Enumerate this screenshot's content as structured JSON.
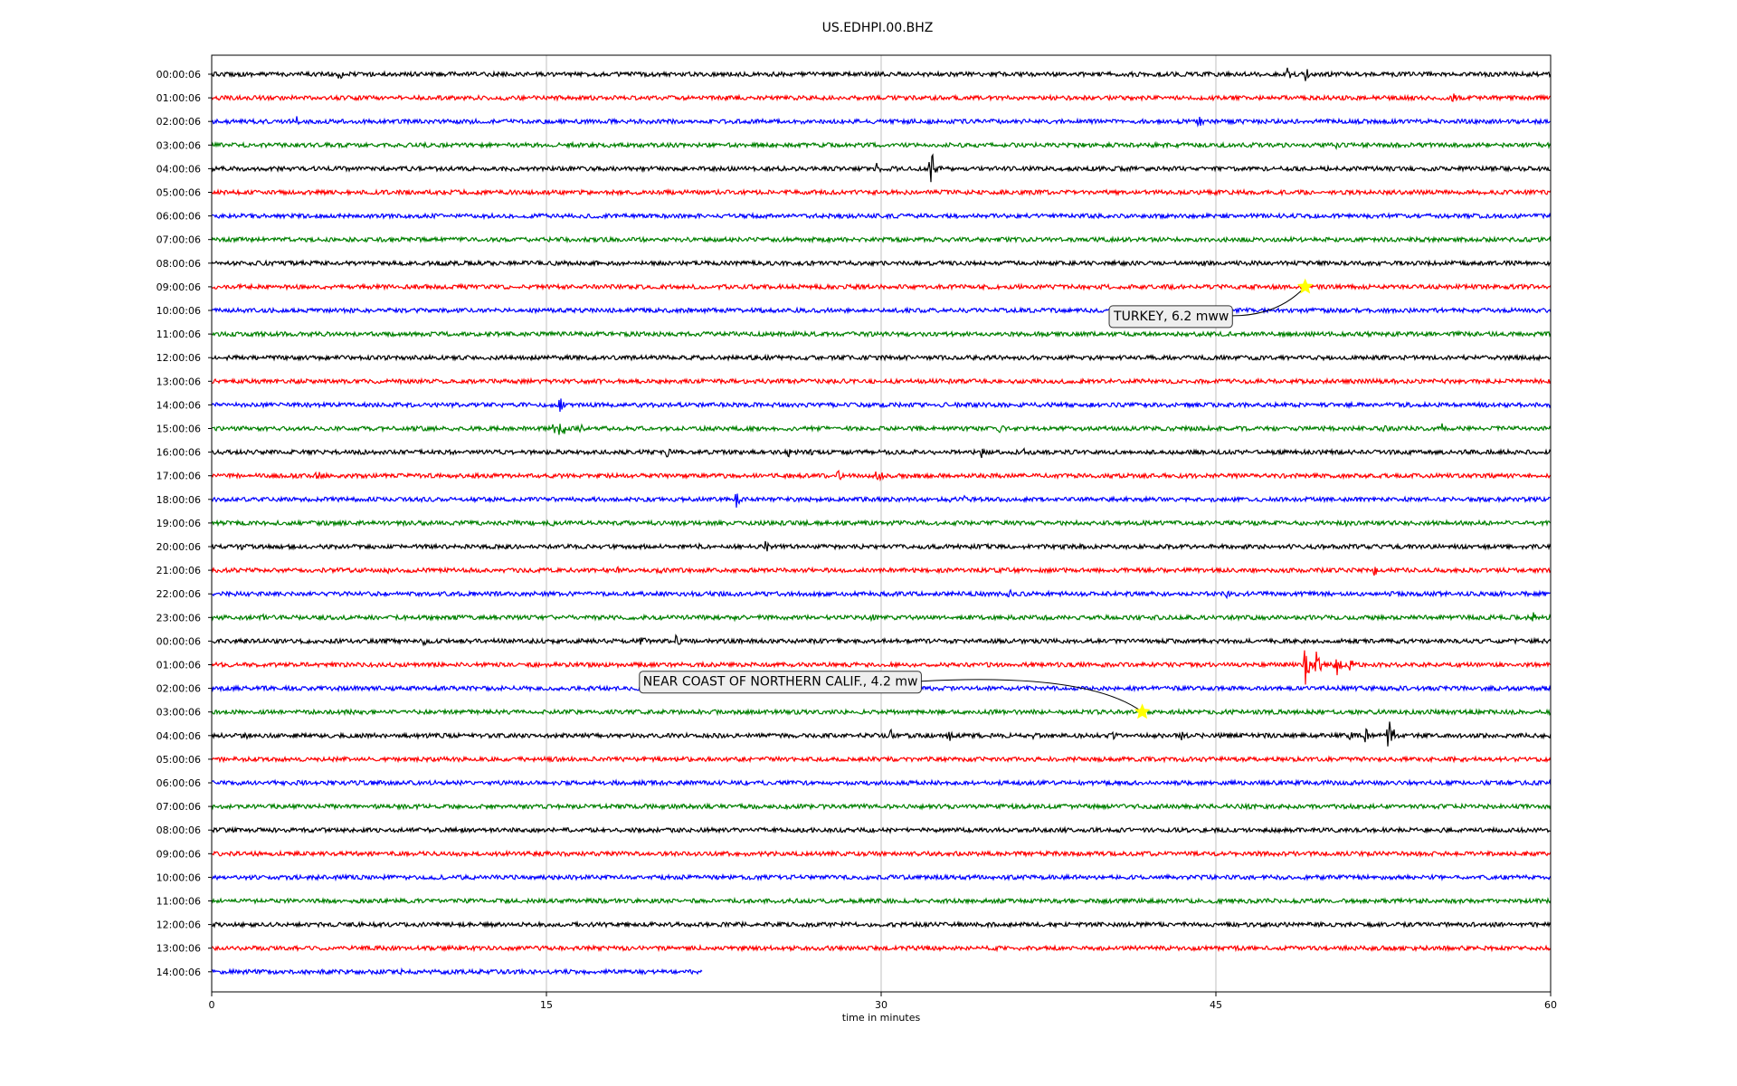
{
  "chart_data": {
    "type": "line",
    "title": "US.EDHPI.00.BHZ",
    "xlabel": "time in minutes",
    "ylabel": "",
    "xlim": [
      0,
      60
    ],
    "x_ticks": [
      0,
      15,
      30,
      45,
      60
    ],
    "x_tick_labels": [
      "0",
      "15",
      "30",
      "45",
      "60"
    ],
    "grid": "vertical at x ticks",
    "row_colors": [
      "#000000",
      "#ff0000",
      "#0000ff",
      "#008000"
    ],
    "rows": [
      {
        "label": "00:00:06",
        "end_min": 60,
        "events": [
          [
            5.7,
            0.6
          ],
          [
            35.3,
            0.5
          ],
          [
            48.2,
            0.6
          ],
          [
            49.0,
            0.7
          ]
        ]
      },
      {
        "label": "01:00:06",
        "end_min": 60,
        "events": [
          [
            13.1,
            0.2
          ],
          [
            43.8,
            0.4
          ],
          [
            55.6,
            0.6
          ]
        ]
      },
      {
        "label": "02:00:06",
        "end_min": 60,
        "events": [
          [
            3.8,
            0.6
          ],
          [
            11.6,
            0.2
          ],
          [
            44.2,
            0.7
          ]
        ]
      },
      {
        "label": "03:00:06",
        "end_min": 60,
        "events": [
          [
            50.4,
            0.3
          ]
        ]
      },
      {
        "label": "04:00:06",
        "end_min": 60,
        "events": [
          [
            29.8,
            0.5
          ],
          [
            32.2,
            1.9
          ],
          [
            32.6,
            0.5
          ]
        ]
      },
      {
        "label": "05:00:06",
        "end_min": 60,
        "events": []
      },
      {
        "label": "06:00:06",
        "end_min": 60,
        "events": []
      },
      {
        "label": "07:00:06",
        "end_min": 60,
        "events": []
      },
      {
        "label": "08:00:06",
        "end_min": 60,
        "events": []
      },
      {
        "label": "09:00:06",
        "end_min": 60,
        "events": []
      },
      {
        "label": "10:00:06",
        "end_min": 60,
        "events": []
      },
      {
        "label": "11:00:06",
        "end_min": 60,
        "events": [
          [
            26.9,
            0.2
          ]
        ]
      },
      {
        "label": "12:00:06",
        "end_min": 60,
        "events": [
          [
            18.8,
            0.2
          ]
        ]
      },
      {
        "label": "13:00:06",
        "end_min": 60,
        "events": []
      },
      {
        "label": "14:00:06",
        "end_min": 60,
        "events": [
          [
            15.6,
            0.7
          ]
        ]
      },
      {
        "label": "15:00:06",
        "end_min": 60,
        "events": [
          [
            15.3,
            0.5
          ],
          [
            15.6,
            1.4
          ],
          [
            16.5,
            0.5
          ],
          [
            35.3,
            0.5
          ],
          [
            41.5,
            0.3
          ],
          [
            52.5,
            0.5
          ],
          [
            55.1,
            0.5
          ]
        ]
      },
      {
        "label": "16:00:06",
        "end_min": 60,
        "events": [
          [
            20.4,
            0.5
          ],
          [
            25.8,
            0.5
          ],
          [
            26.8,
            0.4
          ],
          [
            34.5,
            0.6
          ],
          [
            36.4,
            0.3
          ]
        ]
      },
      {
        "label": "17:00:06",
        "end_min": 60,
        "events": [
          [
            1.0,
            0.4
          ],
          [
            4.7,
            0.6
          ],
          [
            28.0,
            0.7
          ],
          [
            29.8,
            0.9
          ]
        ]
      },
      {
        "label": "18:00:06",
        "end_min": 60,
        "events": [
          [
            23.5,
            0.7
          ],
          [
            33.1,
            0.5
          ],
          [
            33.7,
            0.4
          ]
        ]
      },
      {
        "label": "19:00:06",
        "end_min": 60,
        "events": [
          [
            13.6,
            0.3
          ],
          [
            15.2,
            0.5
          ],
          [
            25.9,
            0.2
          ],
          [
            50.8,
            0.3
          ]
        ]
      },
      {
        "label": "20:00:06",
        "end_min": 60,
        "events": [
          [
            1.3,
            0.4
          ],
          [
            21.8,
            0.3
          ],
          [
            24.8,
            0.6
          ],
          [
            57.8,
            0.4
          ]
        ]
      },
      {
        "label": "21:00:06",
        "end_min": 60,
        "events": [
          [
            7.9,
            0.3
          ],
          [
            18.2,
            0.4
          ],
          [
            20.0,
            0.6
          ],
          [
            52.1,
            0.5
          ],
          [
            53.3,
            0.3
          ]
        ]
      },
      {
        "label": "22:00:06",
        "end_min": 60,
        "events": [
          [
            2.6,
            0.2
          ],
          [
            14.4,
            0.3
          ],
          [
            28.2,
            0.3
          ],
          [
            35.7,
            0.5
          ],
          [
            45.5,
            0.6
          ]
        ]
      },
      {
        "label": "23:00:06",
        "end_min": 60,
        "events": [
          [
            2.3,
            0.3
          ],
          [
            23.4,
            0.3
          ],
          [
            29.6,
            0.6
          ],
          [
            59.2,
            0.5
          ]
        ]
      },
      {
        "label": "00:00:06",
        "end_min": 60,
        "events": [
          [
            9.5,
            0.4
          ],
          [
            16.5,
            0.3
          ],
          [
            19.2,
            0.7
          ],
          [
            20.8,
            0.6
          ]
        ]
      },
      {
        "label": "01:00:06",
        "end_min": 60,
        "events": [
          [
            49.0,
            2.1
          ],
          [
            49.5,
            1.3
          ],
          [
            50.3,
            1.7
          ],
          [
            51.0,
            0.6
          ]
        ]
      },
      {
        "label": "02:00:06",
        "end_min": 60,
        "events": [
          [
            40.8,
            0.2
          ]
        ]
      },
      {
        "label": "03:00:06",
        "end_min": 60,
        "events": [
          [
            58.4,
            0.3
          ],
          [
            59.9,
            0.3
          ]
        ]
      },
      {
        "label": "04:00:06",
        "end_min": 60,
        "events": [
          [
            1.5,
            0.4
          ],
          [
            30.4,
            0.6
          ],
          [
            33.0,
            0.7
          ],
          [
            36.8,
            0.5
          ],
          [
            40.4,
            0.4
          ],
          [
            43.4,
            0.5
          ],
          [
            51.0,
            0.6
          ],
          [
            51.7,
            0.7
          ],
          [
            52.7,
            2.1
          ]
        ]
      },
      {
        "label": "05:00:06",
        "end_min": 60,
        "events": []
      },
      {
        "label": "06:00:06",
        "end_min": 60,
        "events": []
      },
      {
        "label": "07:00:06",
        "end_min": 60,
        "events": []
      },
      {
        "label": "08:00:06",
        "end_min": 60,
        "events": [
          [
            28.2,
            0.3
          ]
        ]
      },
      {
        "label": "09:00:06",
        "end_min": 60,
        "events": []
      },
      {
        "label": "10:00:06",
        "end_min": 60,
        "events": []
      },
      {
        "label": "11:00:06",
        "end_min": 60,
        "events": []
      },
      {
        "label": "12:00:06",
        "end_min": 60,
        "events": []
      },
      {
        "label": "13:00:06",
        "end_min": 60,
        "events": [
          [
            50.5,
            0.3
          ]
        ]
      },
      {
        "label": "14:00:06",
        "end_min": 22.0,
        "events": [
          [
            8.5,
            0.3
          ]
        ]
      }
    ],
    "annotations": [
      {
        "text": "TURKEY, 6.2 mww",
        "row": 9,
        "x_min": 49.0,
        "marker_color": "#ffff00"
      },
      {
        "text": "NEAR COAST OF NORTHERN CALIF., 4.2 mw",
        "row": 27,
        "x_min": 41.7,
        "marker_color": "#ffff00"
      }
    ]
  }
}
